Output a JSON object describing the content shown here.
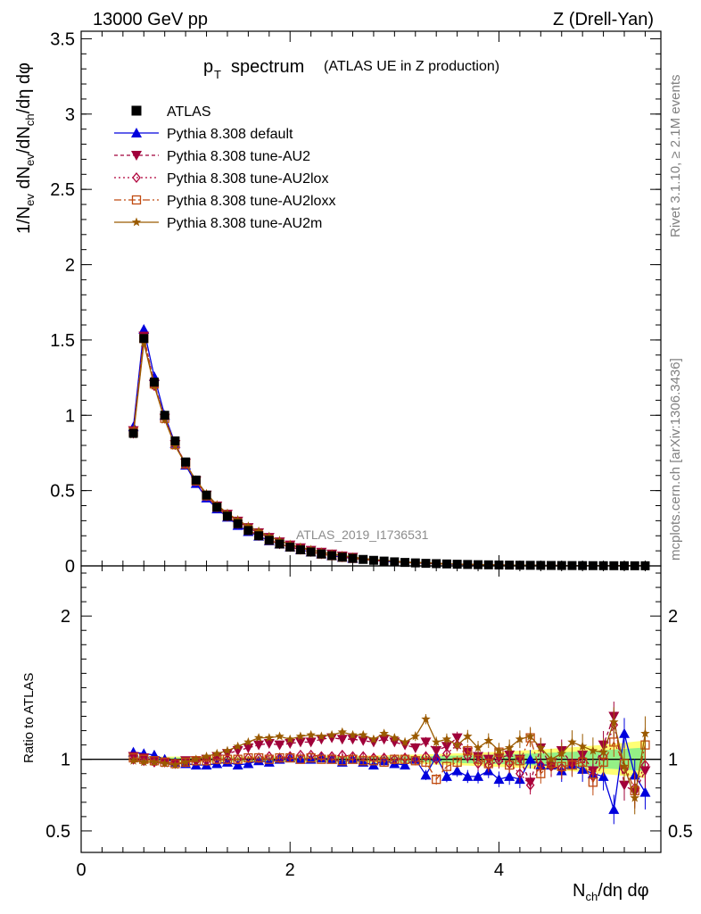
{
  "header": {
    "left": "13000 GeV pp",
    "right": "Z (Drell-Yan)",
    "title_main": "p",
    "title_sub": "T",
    "title_word": "spectrum",
    "title_paren": "(ATLAS UE in Z production)"
  },
  "side": {
    "rivet": "Rivet 3.1.10, ≥ 2.1M events",
    "mcplots": "mcplots.cern.ch [arXiv:1306.3436]"
  },
  "watermark": "ATLAS_2019_I1736531",
  "ratio_label": "Ratio to ATLAS",
  "xlabel": "N_ch/dη dφ",
  "ylabel": "1/N_ev dN_ev/dN_ch/dη dφ",
  "colors": {
    "data": "#000000",
    "default": "#0000dd",
    "au2": "#a0003a",
    "au2lox": "#b0003a",
    "au2loxx": "#c04a10",
    "au2m": "#9a5a00",
    "band_yellow": "#ffff66",
    "band_green": "#88ee88"
  },
  "chart_data": [
    {
      "type": "line",
      "panel": "main",
      "xlim": [
        0,
        5.55
      ],
      "ylim": [
        0,
        3.55
      ],
      "xticks": [
        0,
        2,
        4
      ],
      "yticks": [
        0,
        0.5,
        1,
        1.5,
        2,
        2.5,
        3,
        3.5
      ],
      "ytick_labels": [
        "0",
        "0.5",
        "1",
        "1.5",
        "2",
        "2.5",
        "3",
        "3.5"
      ],
      "x": [
        0.5,
        0.6,
        0.7,
        0.8,
        0.9,
        1.0,
        1.1,
        1.2,
        1.3,
        1.4,
        1.5,
        1.6,
        1.7,
        1.8,
        1.9,
        2.0,
        2.1,
        2.2,
        2.3,
        2.4,
        2.5,
        2.6,
        2.7,
        2.8,
        2.9,
        3.0,
        3.1,
        3.2,
        3.3,
        3.4,
        3.5,
        3.6,
        3.7,
        3.8,
        3.9,
        4.0,
        4.1,
        4.2,
        4.3,
        4.4,
        4.5,
        4.6,
        4.7,
        4.8,
        4.9,
        5.0,
        5.1,
        5.2,
        5.3,
        5.4
      ],
      "data_values": [
        0.88,
        1.51,
        1.22,
        1.0,
        0.83,
        0.69,
        0.57,
        0.47,
        0.39,
        0.33,
        0.28,
        0.235,
        0.2,
        0.17,
        0.145,
        0.125,
        0.107,
        0.092,
        0.079,
        0.068,
        0.058,
        0.05,
        0.043,
        0.037,
        0.032,
        0.027,
        0.023,
        0.02,
        0.017,
        0.015,
        0.013,
        0.011,
        0.0095,
        0.008,
        0.007,
        0.006,
        0.0052,
        0.0045,
        0.0039,
        0.0034,
        0.0029,
        0.0025,
        0.0022,
        0.0019,
        0.0016,
        0.0014,
        0.0012,
        0.001,
        0.0009,
        0.0008
      ],
      "legend": [
        {
          "key": "data",
          "label": "ATLAS"
        },
        {
          "key": "default",
          "label": "Pythia 8.308 default"
        },
        {
          "key": "au2",
          "label": "Pythia 8.308 tune-AU2"
        },
        {
          "key": "au2lox",
          "label": "Pythia 8.308 tune-AU2lox"
        },
        {
          "key": "au2loxx",
          "label": "Pythia 8.308 tune-AU2loxx"
        },
        {
          "key": "au2m",
          "label": "Pythia 8.308 tune-AU2m"
        }
      ]
    },
    {
      "type": "line",
      "panel": "ratio",
      "xlim": [
        0,
        5.55
      ],
      "ylim": [
        0.35,
        2.35
      ],
      "xticks": [
        0,
        2,
        4
      ],
      "yticks": [
        0.5,
        1,
        2
      ],
      "ytick_labels": [
        "0.5",
        "1",
        "2"
      ],
      "x": [
        0.5,
        0.6,
        0.7,
        0.8,
        0.9,
        1.0,
        1.1,
        1.2,
        1.3,
        1.4,
        1.5,
        1.6,
        1.7,
        1.8,
        1.9,
        2.0,
        2.1,
        2.2,
        2.3,
        2.4,
        2.5,
        2.6,
        2.7,
        2.8,
        2.9,
        3.0,
        3.1,
        3.2,
        3.3,
        3.4,
        3.5,
        3.6,
        3.7,
        3.8,
        3.9,
        4.0,
        4.1,
        4.2,
        4.3,
        4.4,
        4.5,
        4.6,
        4.7,
        4.8,
        4.9,
        5.0,
        5.1,
        5.2,
        5.3,
        5.4
      ],
      "series": [
        {
          "key": "default",
          "name": "Pythia 8.308 default",
          "marker": "triangle",
          "values": [
            1.05,
            1.04,
            1.03,
            1.0,
            0.98,
            0.97,
            0.96,
            0.96,
            0.97,
            0.98,
            0.96,
            0.97,
            0.99,
            0.98,
            1.0,
            1.01,
            1.0,
            1.0,
            1.01,
            1.0,
            0.98,
            1.0,
            0.98,
            0.96,
            0.99,
            0.97,
            0.96,
            1.0,
            0.89,
            1.02,
            0.88,
            0.92,
            0.88,
            0.88,
            0.92,
            0.86,
            0.88,
            0.86,
            1.0,
            0.96,
            0.96,
            0.92,
            0.96,
            0.93,
            0.9,
            0.88,
            0.65,
            1.18,
            0.89,
            0.77
          ]
        },
        {
          "key": "au2",
          "name": "Pythia 8.308 tune-AU2",
          "marker": "triangle-down",
          "values": [
            1.02,
            1.01,
            0.99,
            0.98,
            0.97,
            0.99,
            0.99,
            1.0,
            1.02,
            1.04,
            1.06,
            1.08,
            1.1,
            1.11,
            1.1,
            1.11,
            1.12,
            1.12,
            1.14,
            1.15,
            1.14,
            1.14,
            1.13,
            1.12,
            1.14,
            1.12,
            1.1,
            1.08,
            1.12,
            1.06,
            1.09,
            1.15,
            1.05,
            1.02,
            1.0,
            1.01,
            1.03,
            1.0,
            0.84,
            1.08,
            0.95,
            1.06,
            0.97,
            1.03,
            0.92,
            1.1,
            1.3,
            0.82,
            0.77,
            0.92
          ]
        },
        {
          "key": "au2lox",
          "name": "Pythia 8.308 tune-AU2lox",
          "marker": "diamond",
          "values": [
            1.0,
            0.99,
            0.98,
            0.98,
            0.97,
            0.98,
            0.99,
            0.99,
            1.0,
            1.0,
            1.0,
            1.01,
            1.01,
            1.02,
            1.01,
            1.02,
            1.03,
            1.03,
            1.02,
            1.02,
            1.03,
            1.02,
            1.02,
            1.01,
            1.01,
            1.0,
            1.01,
            1.0,
            1.02,
            1.0,
            1.04,
            1.1,
            1.02,
            0.97,
            0.96,
            0.99,
            0.97,
            0.9,
            0.82,
            0.96,
            0.95,
            0.94,
            0.97,
            1.0,
            0.88,
            1.02,
            1.24,
            0.93,
            0.8,
            0.96
          ]
        },
        {
          "key": "au2loxx",
          "name": "Pythia 8.308 tune-AU2loxx",
          "marker": "square-open",
          "values": [
            1.01,
            1.0,
            0.99,
            0.98,
            0.97,
            0.98,
            0.99,
            0.99,
            1.0,
            1.0,
            1.0,
            1.01,
            1.01,
            1.0,
            1.01,
            1.01,
            1.0,
            1.01,
            1.0,
            1.0,
            0.99,
            1.0,
            0.99,
            0.99,
            0.98,
            1.0,
            1.0,
            0.99,
            0.98,
            0.86,
            0.95,
            0.98,
            1.06,
            1.0,
            0.97,
            1.05,
            0.96,
            0.99,
            1.15,
            0.9,
            0.97,
            0.95,
            0.96,
            0.98,
            0.84,
            0.98,
            1.12,
            0.97,
            0.78,
            1.1
          ]
        },
        {
          "key": "au2m",
          "name": "Pythia 8.308 tune-AU2m",
          "marker": "star",
          "values": [
            0.99,
            0.98,
            0.98,
            0.97,
            0.96,
            0.98,
            1.0,
            1.02,
            1.04,
            1.06,
            1.09,
            1.12,
            1.15,
            1.15,
            1.16,
            1.14,
            1.16,
            1.17,
            1.16,
            1.17,
            1.19,
            1.17,
            1.17,
            1.14,
            1.18,
            1.15,
            1.12,
            1.16,
            1.28,
            1.12,
            1.14,
            1.1,
            1.16,
            1.08,
            1.13,
            1.06,
            1.08,
            1.14,
            1.16,
            1.08,
            1.0,
            1.04,
            1.12,
            1.09,
            1.06,
            1.05,
            1.26,
            0.95,
            0.73,
            1.18
          ]
        }
      ]
    }
  ]
}
